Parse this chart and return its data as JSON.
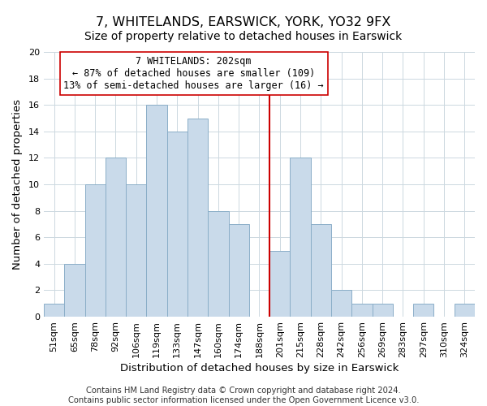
{
  "title": "7, WHITELANDS, EARSWICK, YORK, YO32 9FX",
  "subtitle": "Size of property relative to detached houses in Earswick",
  "xlabel": "Distribution of detached houses by size in Earswick",
  "ylabel": "Number of detached properties",
  "bin_labels": [
    "51sqm",
    "65sqm",
    "78sqm",
    "92sqm",
    "106sqm",
    "119sqm",
    "133sqm",
    "147sqm",
    "160sqm",
    "174sqm",
    "188sqm",
    "201sqm",
    "215sqm",
    "228sqm",
    "242sqm",
    "256sqm",
    "269sqm",
    "283sqm",
    "297sqm",
    "310sqm",
    "324sqm"
  ],
  "bar_heights": [
    1,
    4,
    10,
    12,
    10,
    16,
    14,
    15,
    8,
    7,
    0,
    5,
    12,
    7,
    2,
    1,
    1,
    0,
    1,
    0,
    1
  ],
  "bar_color": "#c9daea",
  "bar_edgecolor": "#8baec8",
  "grid_color": "#ccd8e0",
  "vline_color": "#cc0000",
  "ylim": [
    0,
    20
  ],
  "yticks": [
    0,
    2,
    4,
    6,
    8,
    10,
    12,
    14,
    16,
    18,
    20
  ],
  "annotation_title": "7 WHITELANDS: 202sqm",
  "annotation_line1": "← 87% of detached houses are smaller (109)",
  "annotation_line2": "13% of semi-detached houses are larger (16) →",
  "annotation_box_edgecolor": "#cc0000",
  "annotation_box_facecolor": "#ffffff",
  "footer_line1": "Contains HM Land Registry data © Crown copyright and database right 2024.",
  "footer_line2": "Contains public sector information licensed under the Open Government Licence v3.0.",
  "title_fontsize": 11.5,
  "subtitle_fontsize": 10,
  "axis_label_fontsize": 9.5,
  "tick_fontsize": 8,
  "annotation_fontsize": 8.5,
  "footer_fontsize": 7.2,
  "background_color": "#ffffff"
}
